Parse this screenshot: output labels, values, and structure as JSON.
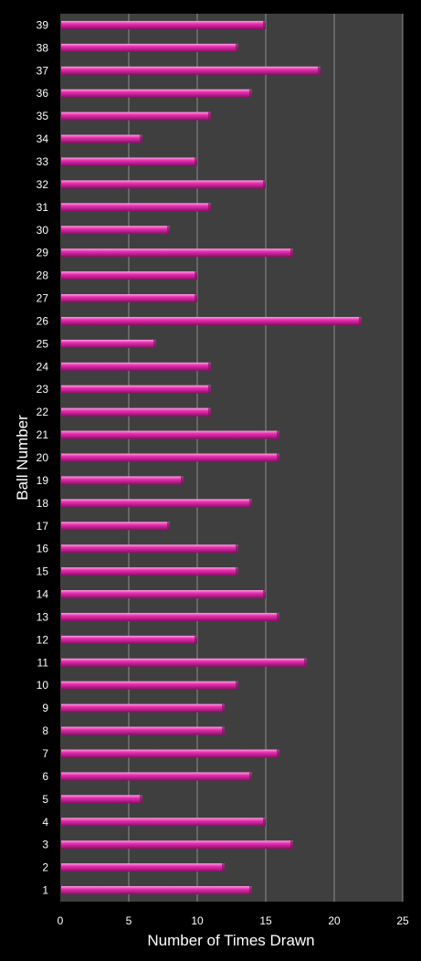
{
  "chart_data": {
    "type": "bar",
    "orientation": "horizontal",
    "title": "",
    "xlabel": "Number of Times Drawn",
    "ylabel": "Ball Number",
    "xlim": [
      0,
      25
    ],
    "xticks": [
      "0",
      "5",
      "10",
      "15",
      "20",
      "25"
    ],
    "grid": true,
    "legend": "none",
    "categories": [
      "1",
      "2",
      "3",
      "4",
      "5",
      "6",
      "7",
      "8",
      "9",
      "10",
      "11",
      "12",
      "13",
      "14",
      "15",
      "16",
      "17",
      "18",
      "19",
      "20",
      "21",
      "22",
      "23",
      "24",
      "25",
      "26",
      "27",
      "28",
      "29",
      "30",
      "31",
      "32",
      "33",
      "34",
      "35",
      "36",
      "37",
      "38",
      "39"
    ],
    "values": [
      14,
      12,
      17,
      15,
      6,
      14,
      16,
      12,
      12,
      13,
      18,
      10,
      16,
      15,
      13,
      13,
      8,
      14,
      9,
      16,
      16,
      11,
      11,
      11,
      7,
      22,
      10,
      10,
      17,
      8,
      11,
      15,
      10,
      6,
      11,
      14,
      19,
      13,
      15
    ],
    "colors": {
      "background": "#000000",
      "plot_area": "#3f3f3f",
      "gridline": "#8c8c8c",
      "bar": "#e82fb0",
      "bar_highlight": "#ff9fe2",
      "bar_shadow": "#8a0e68",
      "text": "#ffffff"
    }
  }
}
